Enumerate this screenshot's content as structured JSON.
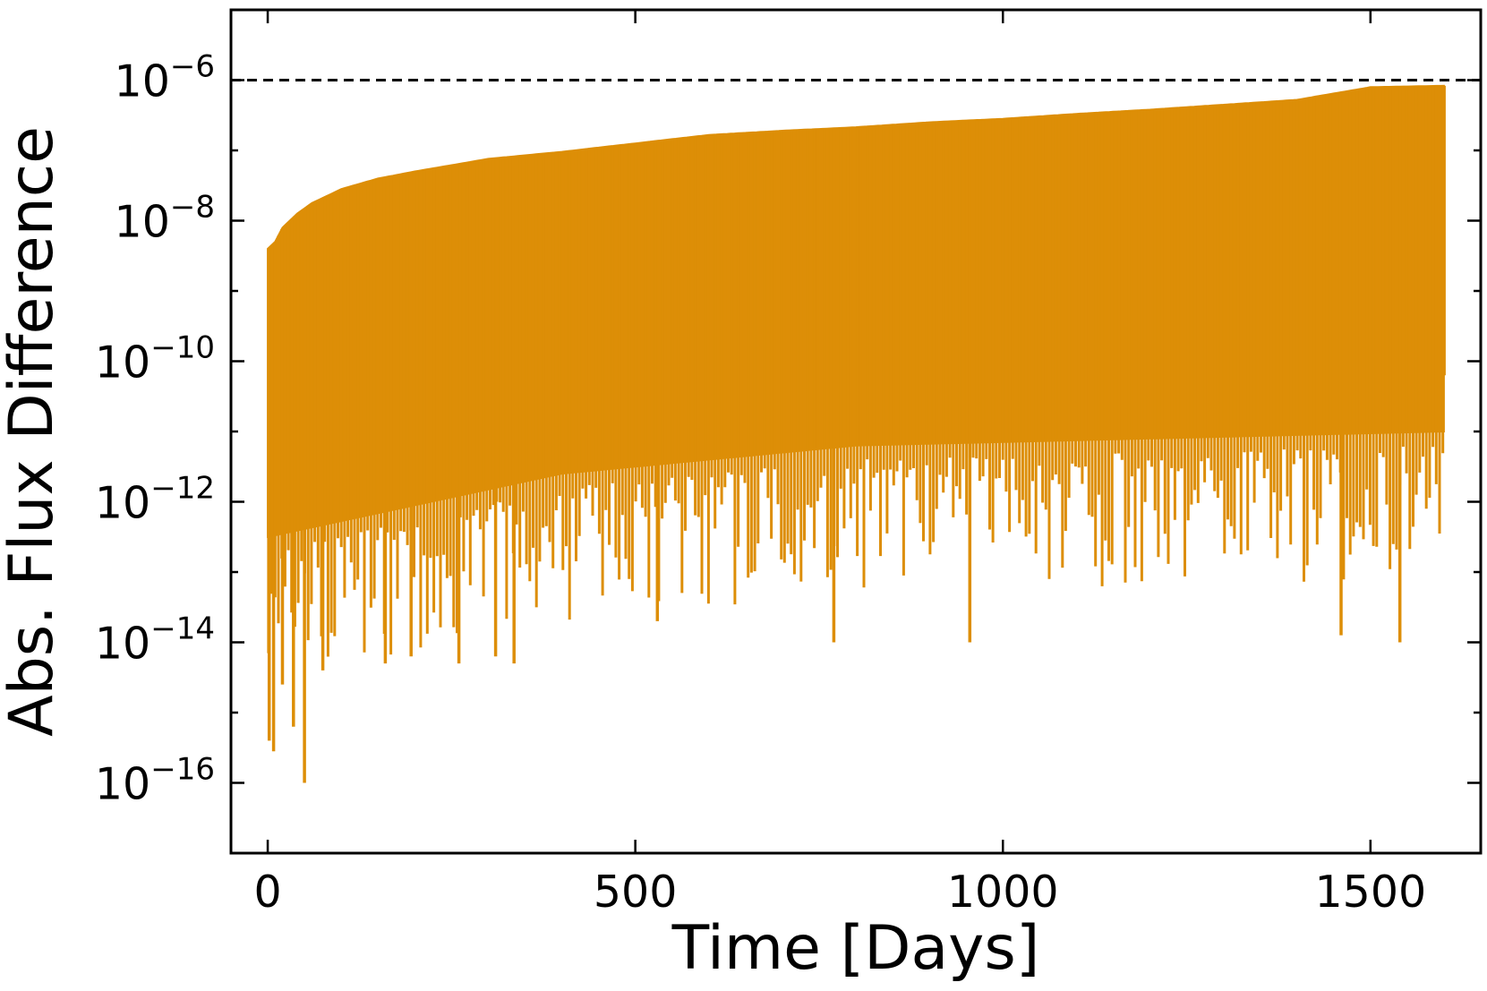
{
  "chart_data": {
    "type": "line",
    "title": "",
    "xlabel": "Time [Days]",
    "ylabel": "Abs. Flux Difference",
    "xlim": [
      -50,
      1650
    ],
    "ylim_log10": [
      -17,
      -5
    ],
    "yscale": "log",
    "grid": false,
    "legend": "none",
    "x_ticks": [
      0,
      500,
      1000,
      1500
    ],
    "x_tick_labels": [
      "0",
      "500",
      "1000",
      "1500"
    ],
    "y_ticks_log10": [
      -6,
      -8,
      -10,
      -12,
      -14,
      -16
    ],
    "y_tick_labels": [
      {
        "base": "10",
        "exp": "−6"
      },
      {
        "base": "10",
        "exp": "−8"
      },
      {
        "base": "10",
        "exp": "−10"
      },
      {
        "base": "10",
        "exp": "−12"
      },
      {
        "base": "10",
        "exp": "−14"
      },
      {
        "base": "10",
        "exp": "−16"
      }
    ],
    "reference_line": {
      "y_log10": -6,
      "style": "dashed",
      "color": "#000000"
    },
    "series": [
      {
        "color": "#DD8E07",
        "x_range": [
          0,
          1600
        ],
        "upper_envelope_log10": [
          {
            "x": 0,
            "y": -8.4
          },
          {
            "x": 10,
            "y": -8.3
          },
          {
            "x": 20,
            "y": -8.1
          },
          {
            "x": 40,
            "y": -7.9
          },
          {
            "x": 60,
            "y": -7.75
          },
          {
            "x": 100,
            "y": -7.55
          },
          {
            "x": 150,
            "y": -7.4
          },
          {
            "x": 200,
            "y": -7.3
          },
          {
            "x": 300,
            "y": -7.12
          },
          {
            "x": 400,
            "y": -7.02
          },
          {
            "x": 500,
            "y": -6.9
          },
          {
            "x": 600,
            "y": -6.78
          },
          {
            "x": 700,
            "y": -6.72
          },
          {
            "x": 800,
            "y": -6.67
          },
          {
            "x": 900,
            "y": -6.6
          },
          {
            "x": 1000,
            "y": -6.55
          },
          {
            "x": 1100,
            "y": -6.48
          },
          {
            "x": 1200,
            "y": -6.42
          },
          {
            "x": 1300,
            "y": -6.35
          },
          {
            "x": 1400,
            "y": -6.28
          },
          {
            "x": 1500,
            "y": -6.1
          },
          {
            "x": 1600,
            "y": -6.08
          }
        ],
        "typical_lower_log10": [
          {
            "x": 0,
            "y": -12.5
          },
          {
            "x": 400,
            "y": -11.6
          },
          {
            "x": 800,
            "y": -11.2
          },
          {
            "x": 1200,
            "y": -11.1
          },
          {
            "x": 1600,
            "y": -11.0
          }
        ],
        "deep_minima_log10": [
          {
            "x": 2,
            "y": -15.4
          },
          {
            "x": 8,
            "y": -15.55
          },
          {
            "x": 20,
            "y": -14.6
          },
          {
            "x": 35,
            "y": -15.2
          },
          {
            "x": 50,
            "y": -16.0
          },
          {
            "x": 75,
            "y": -14.4
          },
          {
            "x": 160,
            "y": -14.3
          },
          {
            "x": 195,
            "y": -14.2
          },
          {
            "x": 260,
            "y": -14.3
          },
          {
            "x": 310,
            "y": -14.2
          },
          {
            "x": 335,
            "y": -14.3
          },
          {
            "x": 530,
            "y": -13.7
          },
          {
            "x": 770,
            "y": -14.0
          },
          {
            "x": 955,
            "y": -14.0
          },
          {
            "x": 1460,
            "y": -13.9
          },
          {
            "x": 1540,
            "y": -14.0
          }
        ],
        "end_value_log10": [
          {
            "x": 1600,
            "y": -10.2
          }
        ]
      }
    ]
  }
}
